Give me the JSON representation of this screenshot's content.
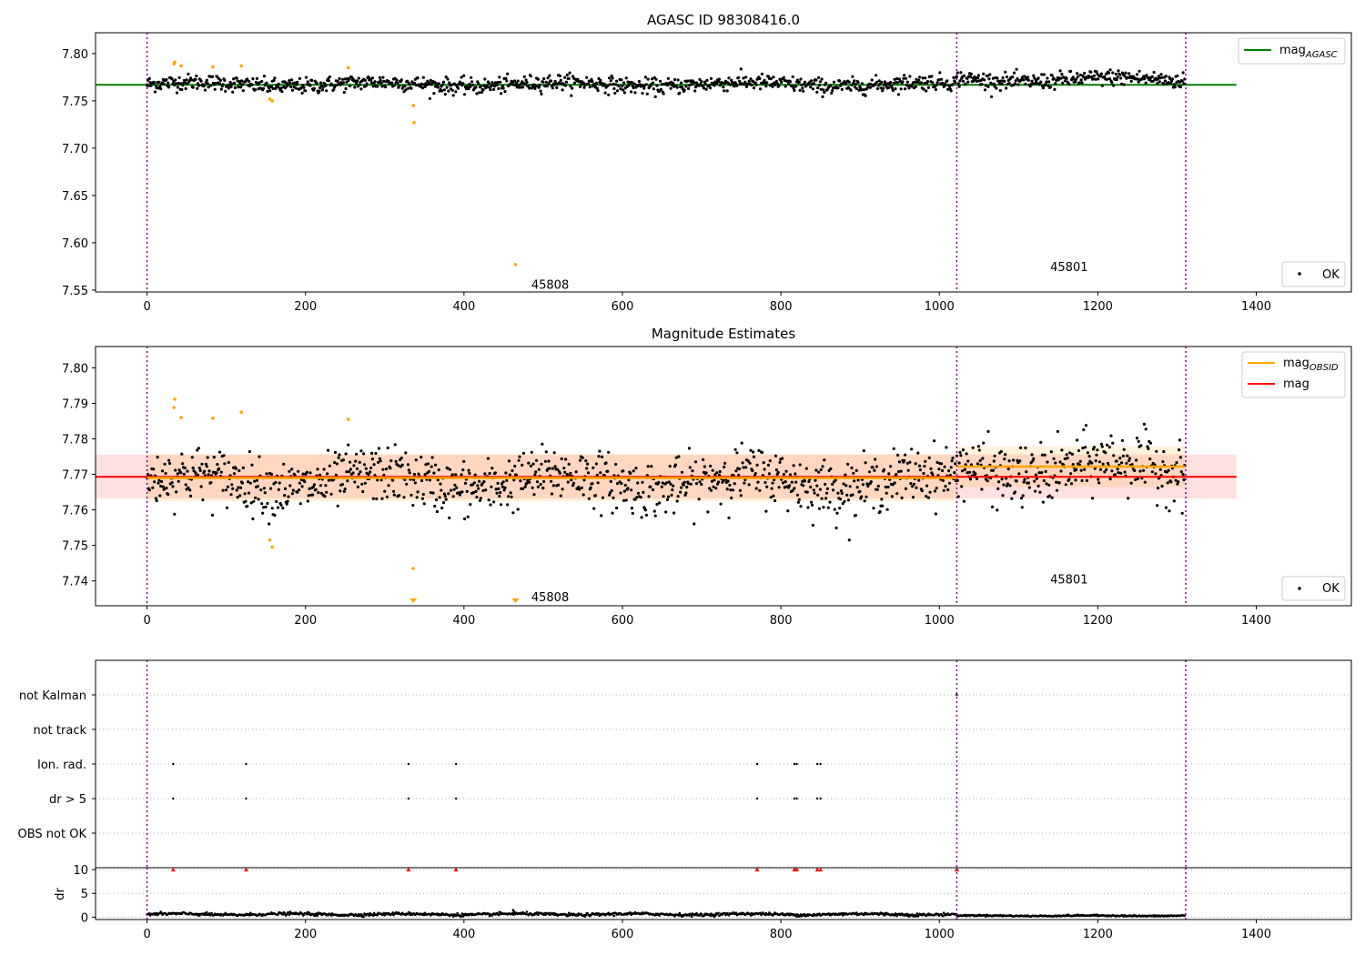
{
  "figure": {
    "title": "AGASC ID 98308416.0"
  },
  "chart_data": [
    {
      "type": "scatter",
      "title": "AGASC ID 98308416.0",
      "xlim": [
        -65,
        1520
      ],
      "ylim": [
        7.548,
        7.822
      ],
      "x_ticks": [
        0,
        200,
        400,
        600,
        800,
        1000,
        1200,
        1400
      ],
      "y_ticks": [
        7.55,
        7.6,
        7.65,
        7.7,
        7.75,
        7.8
      ],
      "y_tick_labels": [
        "7.55",
        "7.60",
        "7.65",
        "7.70",
        "7.75",
        "7.80"
      ],
      "legend_upper": {
        "placement": "top-right",
        "label": "mag",
        "subscript": "AGASC"
      },
      "legend_lower": {
        "placement": "bottom-right",
        "label": "OK"
      },
      "series": [
        {
          "name": "mag_AGASC",
          "kind": "hline",
          "y": 7.767,
          "x_range": [
            -65,
            1375
          ],
          "color": "#008000"
        },
        {
          "name": "OK",
          "kind": "scatter-band",
          "x_range": [
            0,
            1310
          ],
          "center": 7.7685,
          "spread": 0.006,
          "color": "#000000"
        }
      ],
      "segments": [
        {
          "x_range": [
            0,
            1022
          ],
          "center": 7.7675
        },
        {
          "x_range": [
            1022,
            1310
          ],
          "center": 7.7725
        }
      ],
      "outliers": {
        "color": "#ffa500",
        "points": [
          [
            34,
            7.789
          ],
          [
            35,
            7.791
          ],
          [
            43,
            7.787
          ],
          [
            83,
            7.786
          ],
          [
            119,
            7.787
          ],
          [
            155,
            7.752
          ],
          [
            158,
            7.75
          ],
          [
            254,
            7.785
          ],
          [
            336,
            7.745
          ],
          [
            337,
            7.727
          ],
          [
            465,
            7.577
          ]
        ]
      },
      "obs_lines": [
        0,
        1022,
        1311
      ],
      "annotations": [
        {
          "text": "45808",
          "x": 485,
          "y": 7.556
        },
        {
          "text": "45801",
          "x": 1140,
          "y": 7.575
        }
      ]
    },
    {
      "type": "scatter",
      "title": "Magnitude Estimates",
      "xlim": [
        -65,
        1520
      ],
      "ylim": [
        7.733,
        7.806
      ],
      "x_ticks": [
        0,
        200,
        400,
        600,
        800,
        1000,
        1200,
        1400
      ],
      "y_ticks": [
        7.74,
        7.75,
        7.76,
        7.77,
        7.78,
        7.79,
        7.8
      ],
      "y_tick_labels": [
        "7.74",
        "7.75",
        "7.76",
        "7.77",
        "7.78",
        "7.79",
        "7.80"
      ],
      "legend_upper": {
        "placement": "top-right",
        "entries": [
          {
            "label": "mag",
            "subscript": "OBSID",
            "color": "#ffa500"
          },
          {
            "label": "mag",
            "subscript": "",
            "color": "#ff0000"
          }
        ]
      },
      "legend_lower": {
        "placement": "bottom-right",
        "label": "OK"
      },
      "mag": {
        "value": 7.7693,
        "band": [
          7.7632,
          7.7756
        ],
        "x_range": [
          -65,
          1375
        ],
        "color": "#ff0000"
      },
      "mag_obsid": [
        {
          "x_range": [
            0,
            1022
          ],
          "value": 7.769,
          "band": [
            7.7624,
            7.7756
          ]
        },
        {
          "x_range": [
            1022,
            1310
          ],
          "value": 7.7722,
          "band": [
            7.7665,
            7.7779
          ]
        }
      ],
      "series": [
        {
          "name": "OK",
          "kind": "scatter-band",
          "x_range": [
            0,
            1310
          ],
          "color": "#000000"
        }
      ],
      "segments": [
        {
          "x_range": [
            0,
            1022
          ],
          "center": 7.768,
          "spread": 0.0055
        },
        {
          "x_range": [
            1022,
            1310
          ],
          "center": 7.7715,
          "spread": 0.006
        }
      ],
      "outliers": {
        "color": "#ffa500",
        "points": [
          [
            34,
            7.7888
          ],
          [
            35,
            7.7912
          ],
          [
            43,
            7.786
          ],
          [
            83,
            7.7858
          ],
          [
            119,
            7.7875
          ],
          [
            155,
            7.7515
          ],
          [
            158,
            7.7495
          ],
          [
            254,
            7.7855
          ],
          [
            336,
            7.7435
          ]
        ],
        "below_range": [
          336,
          465
        ]
      },
      "obs_lines": [
        0,
        1022,
        1311
      ],
      "annotations": [
        {
          "text": "45808",
          "x": 485,
          "y": 7.7355
        },
        {
          "text": "45801",
          "x": 1140,
          "y": 7.7405
        }
      ]
    },
    {
      "type": "scatter",
      "title": "",
      "xlim": [
        -65,
        1520
      ],
      "flag_rows": [
        "not Kalman",
        "not track",
        "Ion. rad.",
        "dr > 5",
        "OBS not OK"
      ],
      "flags": {
        "not Kalman": [
          1022
        ],
        "not track": [],
        "Ion. rad.": [
          33,
          125,
          330,
          390,
          770,
          817,
          820,
          846,
          850
        ],
        "dr > 5": [
          33,
          125,
          330,
          390,
          770,
          817,
          820,
          846,
          850
        ],
        "OBS not OK": []
      },
      "obs_lines": [
        0,
        1022,
        1311
      ]
    },
    {
      "type": "scatter",
      "title": "",
      "ylabel": "dr",
      "xlim": [
        -65,
        1520
      ],
      "ylim": [
        -0.5,
        10.4
      ],
      "x_ticks": [
        0,
        200,
        400,
        600,
        800,
        1000,
        1200,
        1400
      ],
      "y_ticks": [
        0,
        5,
        10
      ],
      "y_tick_labels": [
        "0",
        "5",
        "10"
      ],
      "dr_limit": 10,
      "clipped_markers": {
        "color": "#ff0000",
        "x": [
          33,
          125,
          330,
          390,
          770,
          817,
          820,
          846,
          850,
          1022
        ]
      },
      "series": [
        {
          "name": "dr",
          "kind": "scatter-band",
          "x_range": [
            0,
            1310
          ],
          "segments": [
            {
              "x_range": [
                0,
                1022
              ],
              "center": 0.6,
              "spread": 0.25
            },
            {
              "x_range": [
                1022,
                1310
              ],
              "center": 0.3,
              "spread": 0.12
            }
          ],
          "extra_points": [
            [
              462,
              1.5
            ],
            [
              463,
              1.2
            ]
          ],
          "color": "#000000"
        }
      ],
      "obs_lines": [
        0,
        1022,
        1311
      ]
    }
  ]
}
